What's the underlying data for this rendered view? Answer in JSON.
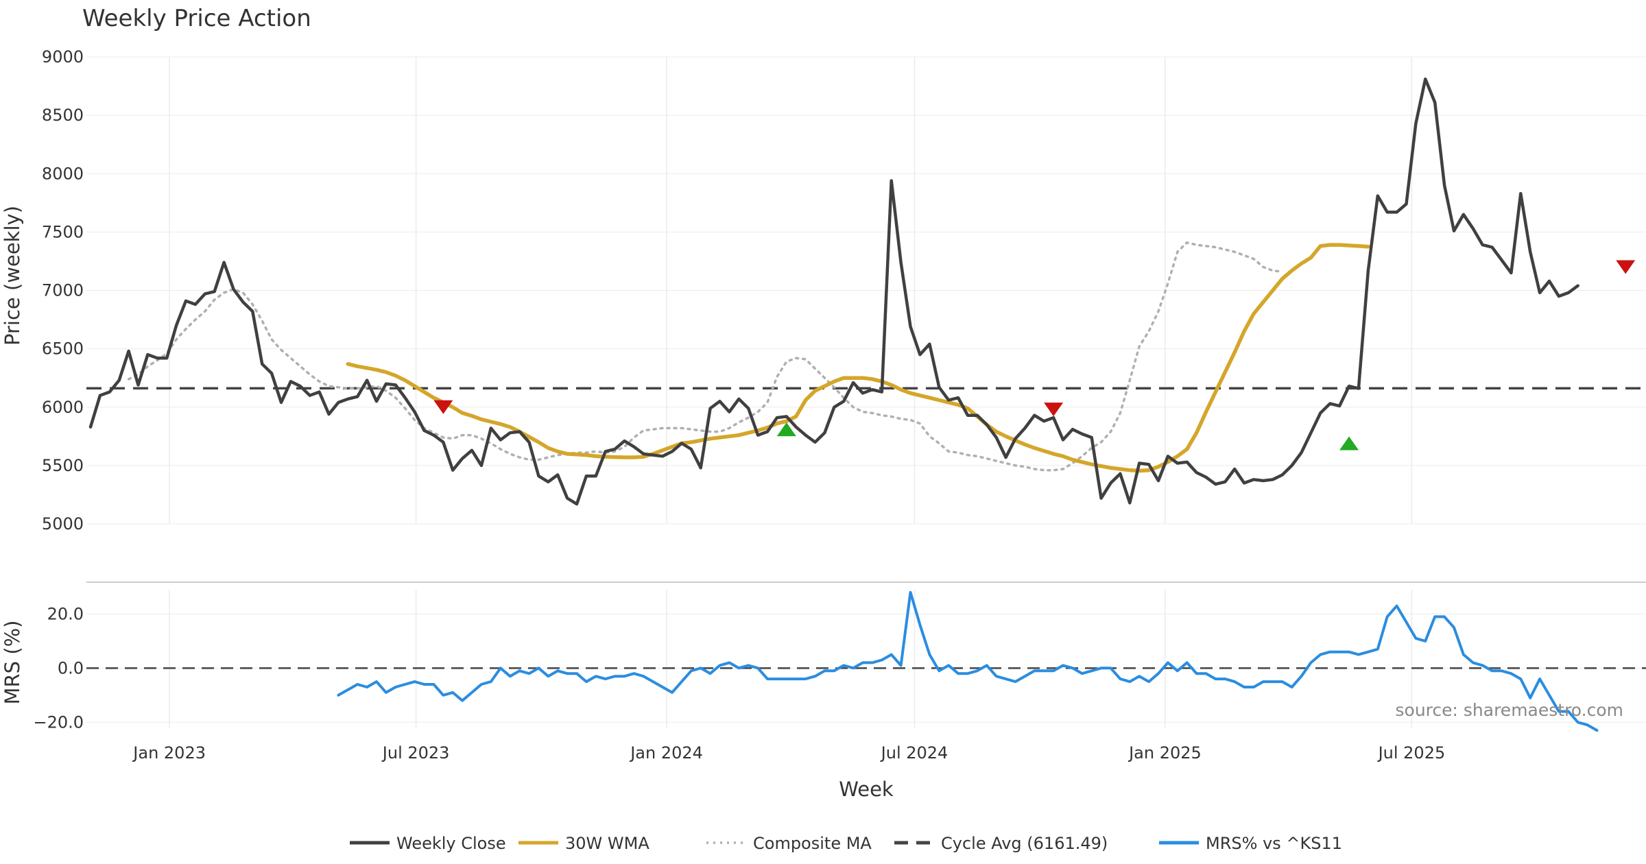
{
  "chart_data": {
    "type": "line",
    "title": "Weekly Price Action",
    "xlabel": "Week",
    "source_note": "source: sharemaestro.com",
    "x_range": [
      "2022-11-01",
      "2025-12-20"
    ],
    "x_ticks": [
      {
        "date": "2023-01-01",
        "label": "Jan 2023"
      },
      {
        "date": "2023-07-01",
        "label": "Jul 2023"
      },
      {
        "date": "2024-01-01",
        "label": "Jan 2024"
      },
      {
        "date": "2024-07-01",
        "label": "Jul 2024"
      },
      {
        "date": "2025-01-01",
        "label": "Jan 2025"
      },
      {
        "date": "2025-07-01",
        "label": "Jul 2025"
      }
    ],
    "colors": {
      "close": "#404040",
      "wma": "#d4a62a",
      "composite": "#b0b0b0",
      "cycle": "#444444",
      "mrs": "#2b8de0",
      "sell": "#cc1111",
      "buy": "#22aa22",
      "grid": "#ebebeb",
      "text": "#333333"
    },
    "price_panel": {
      "ylabel": "Price (weekly)",
      "ylim": [
        5000,
        9000
      ],
      "yticks": [
        5000,
        5500,
        6000,
        6500,
        7000,
        7500,
        8000,
        8500,
        9000
      ],
      "ytick_labels": [
        "5000",
        "5500",
        "6000",
        "6500",
        "7000",
        "7500",
        "8000",
        "8500",
        "9000"
      ],
      "cycle_avg": 6161.49,
      "series": [
        {
          "name": "Weekly Close",
          "key": "close",
          "style": "solid",
          "start": "2022-11-04",
          "values": [
            5830,
            6100,
            6130,
            6230,
            6480,
            6190,
            6450,
            6420,
            6420,
            6700,
            6910,
            6880,
            6970,
            6990,
            7240,
            7010,
            6900,
            6820,
            6370,
            6290,
            6040,
            6220,
            6180,
            6100,
            6130,
            5940,
            6040,
            6070,
            6090,
            6230,
            6050,
            6200,
            6190,
            6080,
            5960,
            5800,
            5760,
            5700,
            5460,
            5560,
            5630,
            5500,
            5820,
            5720,
            5780,
            5790,
            5700,
            5410,
            5360,
            5420,
            5220,
            5170,
            5410,
            5410,
            5620,
            5640,
            5710,
            5660,
            5600,
            5590,
            5580,
            5620,
            5690,
            5640,
            5480,
            5990,
            6050,
            5960,
            6070,
            5990,
            5760,
            5790,
            5910,
            5920,
            5830,
            5760,
            5700,
            5780,
            6000,
            6050,
            6210,
            6120,
            6150,
            6130,
            7940,
            7240,
            6690,
            6450,
            6540,
            6170,
            6060,
            6080,
            5930,
            5930,
            5850,
            5740,
            5570,
            5730,
            5820,
            5930,
            5880,
            5910,
            5720,
            5810,
            5770,
            5740,
            5220,
            5350,
            5430,
            5180,
            5520,
            5510,
            5370,
            5580,
            5520,
            5530,
            5440,
            5400,
            5340,
            5360,
            5470,
            5350,
            5380,
            5370,
            5380,
            5420,
            5500,
            5610,
            5780,
            5950,
            6030,
            6010,
            6180,
            6160,
            7170,
            7810,
            7670,
            7670,
            7740,
            8430,
            8810,
            8610,
            7900,
            7510,
            7650,
            7530,
            7390,
            7370,
            7260,
            7150,
            7830,
            7330,
            6980,
            7080,
            6950,
            6980,
            7040
          ]
        },
        {
          "name": "30W WMA",
          "key": "wma",
          "style": "solid",
          "start": "2023-05-12",
          "values": [
            6370,
            6350,
            6335,
            6320,
            6300,
            6270,
            6230,
            6180,
            6130,
            6080,
            6040,
            6000,
            5950,
            5925,
            5895,
            5875,
            5855,
            5830,
            5790,
            5745,
            5700,
            5650,
            5620,
            5600,
            5595,
            5590,
            5580,
            5575,
            5572,
            5570,
            5570,
            5575,
            5600,
            5630,
            5660,
            5690,
            5700,
            5715,
            5730,
            5740,
            5750,
            5760,
            5780,
            5800,
            5825,
            5860,
            5880,
            5920,
            6060,
            6140,
            6180,
            6220,
            6250,
            6250,
            6250,
            6240,
            6220,
            6190,
            6150,
            6120,
            6100,
            6080,
            6060,
            6040,
            6020,
            5990,
            5920,
            5850,
            5790,
            5750,
            5715,
            5680,
            5650,
            5625,
            5600,
            5580,
            5550,
            5530,
            5510,
            5495,
            5480,
            5470,
            5460,
            5455,
            5460,
            5490,
            5530,
            5580,
            5640,
            5780,
            5960,
            6130,
            6300,
            6470,
            6650,
            6800,
            6900,
            7000,
            7100,
            7170,
            7230,
            7280,
            7380,
            7390,
            7390,
            7385,
            7380,
            7375
          ]
        },
        {
          "name": "Composite MA",
          "key": "composite",
          "style": "dotted",
          "start": "2022-12-02",
          "values": [
            6240,
            6280,
            6350,
            6400,
            6460,
            6580,
            6670,
            6750,
            6820,
            6920,
            6980,
            7010,
            6980,
            6880,
            6740,
            6580,
            6490,
            6420,
            6350,
            6280,
            6220,
            6180,
            6170,
            6160,
            6160,
            6170,
            6180,
            6140,
            6080,
            5990,
            5890,
            5820,
            5780,
            5740,
            5730,
            5760,
            5760,
            5730,
            5690,
            5640,
            5600,
            5570,
            5550,
            5550,
            5570,
            5590,
            5600,
            5610,
            5610,
            5620,
            5610,
            5620,
            5660,
            5740,
            5800,
            5810,
            5820,
            5820,
            5820,
            5810,
            5800,
            5790,
            5790,
            5820,
            5870,
            5910,
            5960,
            6040,
            6260,
            6390,
            6420,
            6410,
            6330,
            6250,
            6170,
            6080,
            6000,
            5960,
            5950,
            5930,
            5920,
            5900,
            5890,
            5860,
            5750,
            5690,
            5620,
            5610,
            5590,
            5580,
            5560,
            5540,
            5520,
            5500,
            5490,
            5470,
            5460,
            5460,
            5470,
            5520,
            5580,
            5650,
            5700,
            5790,
            5950,
            6230,
            6520,
            6650,
            6820,
            7060,
            7330,
            7410,
            7390,
            7380,
            7370,
            7350,
            7330,
            7300,
            7270,
            7200,
            7170,
            7160
          ]
        }
      ],
      "signals": [
        {
          "type": "sell",
          "date": "2023-07-21",
          "value": 6000
        },
        {
          "type": "buy",
          "date": "2024-03-29",
          "value": 5810
        },
        {
          "type": "sell",
          "date": "2024-10-11",
          "value": 5980
        },
        {
          "type": "buy",
          "date": "2025-05-16",
          "value": 5690
        },
        {
          "type": "sell",
          "date": "2025-12-05",
          "value": 7200
        }
      ]
    },
    "mrs_panel": {
      "ylabel": "MRS (%)",
      "ylim": [
        -25,
        31
      ],
      "yticks": [
        -20,
        0,
        20
      ],
      "ytick_labels": [
        "−20.0",
        "0.0",
        "20.0"
      ],
      "zero_line": 0,
      "series": [
        {
          "name": "MRS% vs ^KS11",
          "key": "mrs",
          "style": "solid",
          "start": "2023-05-05",
          "values": [
            -10,
            -8,
            -6,
            -7,
            -5,
            -9,
            -7,
            -6,
            -5,
            -6,
            -6,
            -10,
            -9,
            -12,
            -9,
            -6,
            -5,
            0,
            -3,
            -1,
            -2,
            0,
            -3,
            -1,
            -2,
            -2,
            -5,
            -3,
            -4,
            -3,
            -3,
            -2,
            -3,
            -5,
            -7,
            -9,
            -5,
            -1,
            0,
            -2,
            1,
            2,
            0,
            1,
            0,
            -4,
            -4,
            -4,
            -4,
            -4,
            -3,
            -1,
            -1,
            1,
            0,
            2,
            2,
            3,
            5,
            1,
            28,
            16,
            5,
            -1,
            1,
            -2,
            -2,
            -1,
            1,
            -3,
            -4,
            -5,
            -3,
            -1,
            -1,
            -1,
            1,
            0,
            -2,
            -1,
            0,
            0,
            -4,
            -5,
            -3,
            -5,
            -2,
            2,
            -1,
            2,
            -2,
            -2,
            -4,
            -4,
            -5,
            -7,
            -7,
            -5,
            -5,
            -5,
            -7,
            -3,
            2,
            5,
            6,
            6,
            6,
            5,
            6,
            7,
            19,
            23,
            17,
            11,
            10,
            19,
            19,
            15,
            5,
            2,
            1,
            -1,
            -1,
            -2,
            -4,
            -11,
            -4,
            -10,
            -16,
            -16,
            -20,
            -21,
            -23
          ]
        }
      ]
    },
    "legend": [
      {
        "label": "Weekly Close",
        "key": "close",
        "style": "solid"
      },
      {
        "label": "30W WMA",
        "key": "wma",
        "style": "solid"
      },
      {
        "label": "Composite MA",
        "key": "composite",
        "style": "dotted"
      },
      {
        "label": "Cycle Avg (6161.49)",
        "key": "cycle",
        "style": "dashed"
      },
      {
        "label": "MRS% vs ^KS11",
        "key": "mrs",
        "style": "solid"
      }
    ]
  }
}
